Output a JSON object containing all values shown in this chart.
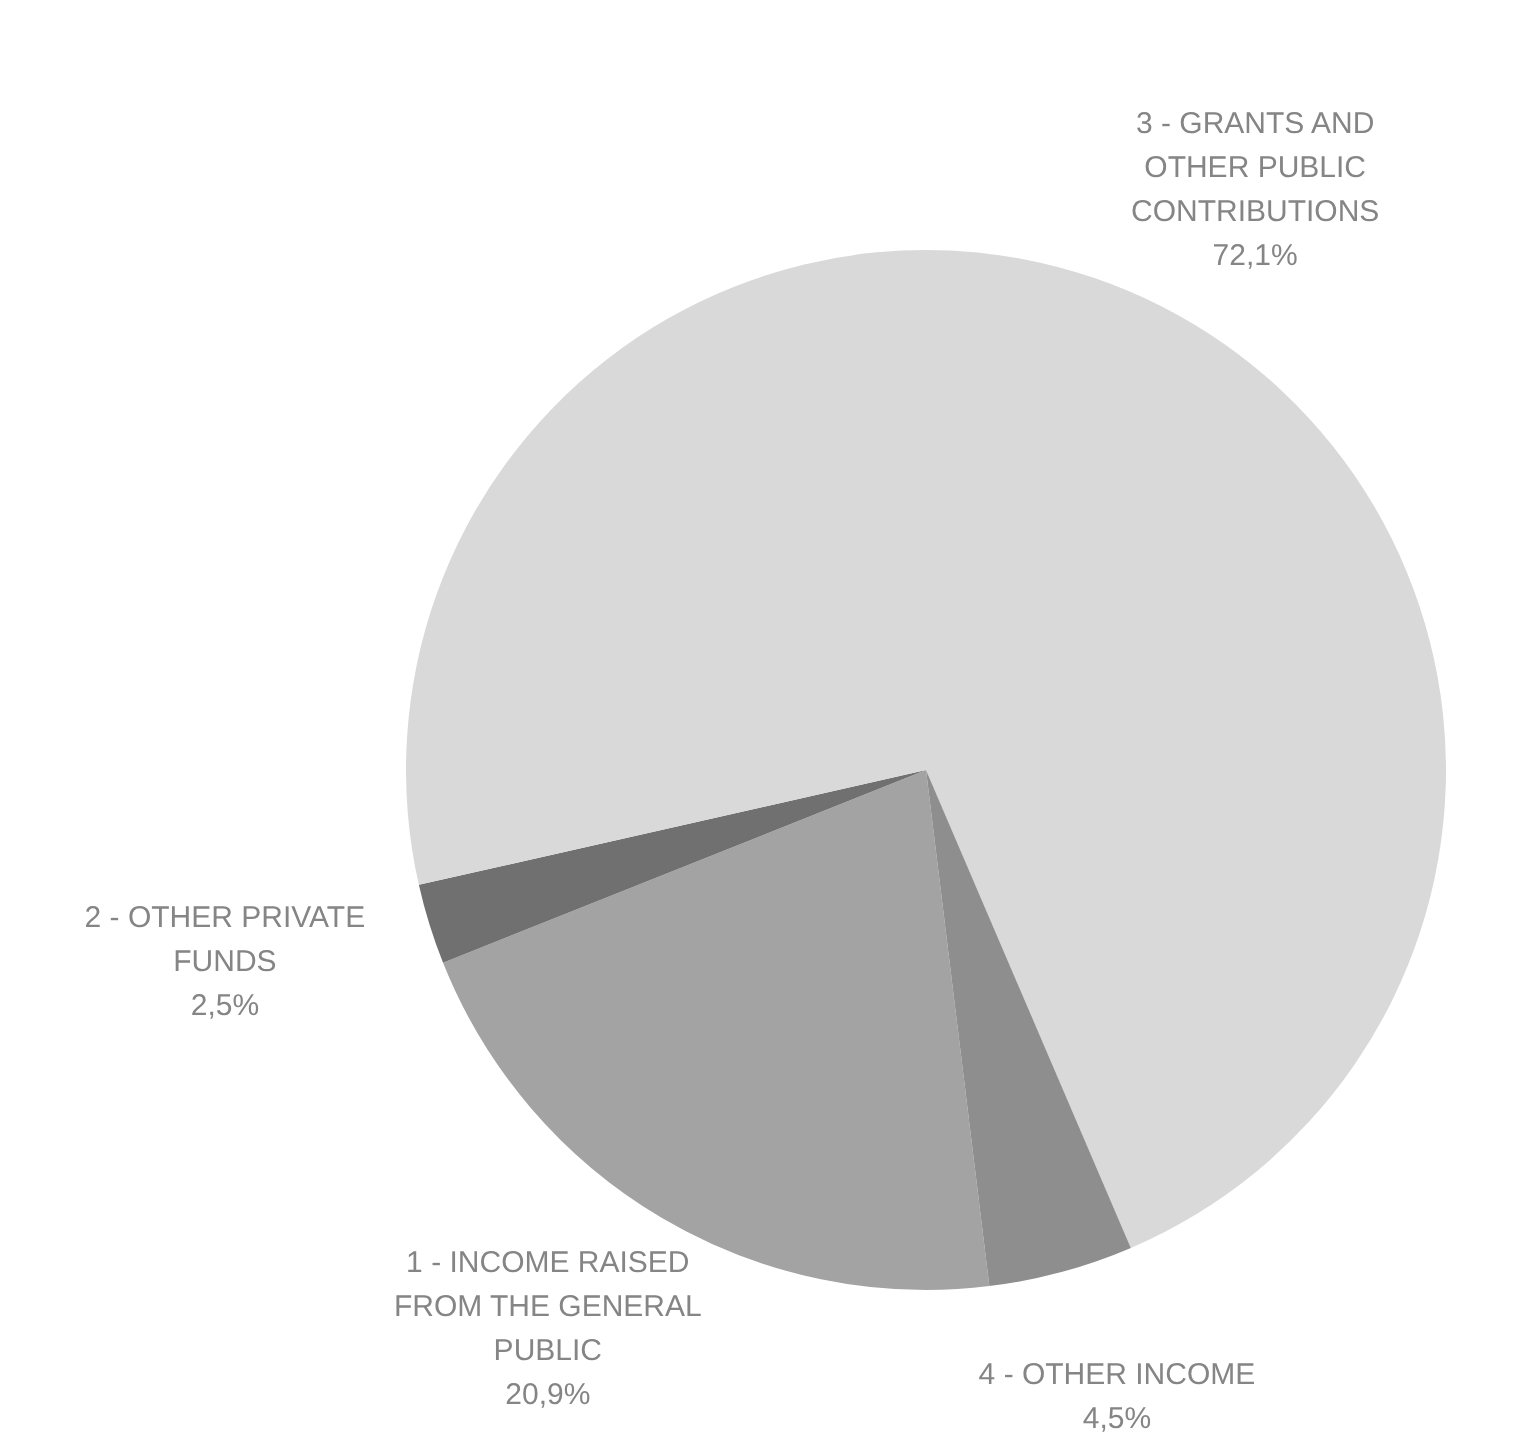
{
  "chart_data": {
    "type": "pie",
    "categories": [
      "1 - INCOME RAISED FROM THE GENERAL PUBLIC",
      "2 - OTHER PRIVATE FUNDS",
      "3 - GRANTS AND OTHER PUBLIC CONTRIBUTIONS",
      "4 - OTHER INCOME"
    ],
    "values": [
      20.9,
      2.5,
      72.1,
      4.5
    ],
    "value_labels": [
      "20,9%",
      "2,5%",
      "72,1%",
      "4,5%"
    ],
    "colors": [
      "#a3a3a3",
      "#707070",
      "#d9d9d9",
      "#8e8e8e"
    ],
    "legend": false
  }
}
